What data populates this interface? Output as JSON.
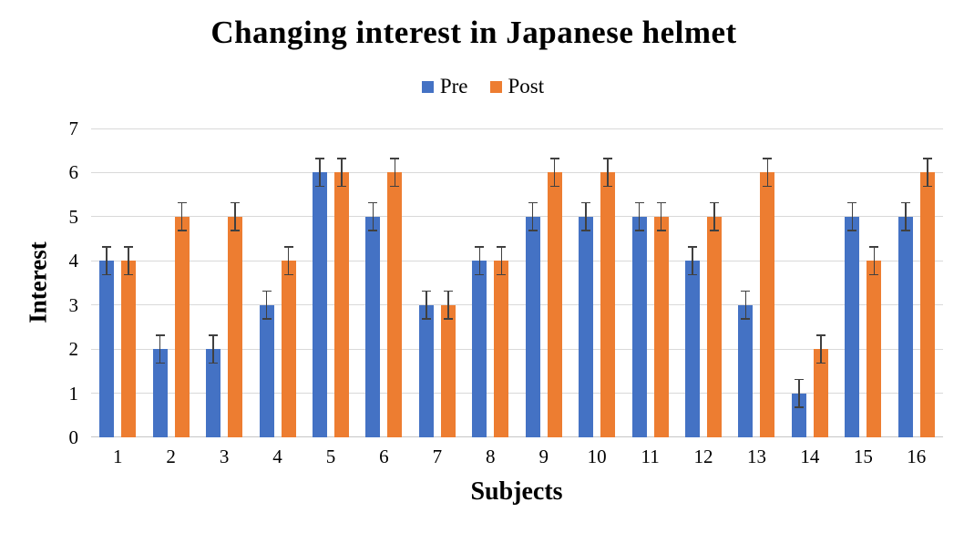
{
  "chart_data": {
    "type": "bar",
    "title": "Changing interest in Japanese helmet",
    "xlabel": "Subjects",
    "ylabel": "Interest",
    "categories": [
      "1",
      "2",
      "3",
      "4",
      "5",
      "6",
      "7",
      "8",
      "9",
      "10",
      "11",
      "12",
      "13",
      "14",
      "15",
      "16"
    ],
    "series": [
      {
        "name": "Pre",
        "color": "#4472C4",
        "values": [
          4,
          2,
          2,
          3,
          6,
          5,
          3,
          4,
          5,
          5,
          5,
          4,
          3,
          1,
          5,
          5
        ]
      },
      {
        "name": "Post",
        "color": "#ED7D31",
        "values": [
          4,
          5,
          5,
          4,
          6,
          6,
          3,
          4,
          6,
          6,
          5,
          5,
          6,
          2,
          4,
          6
        ]
      }
    ],
    "error_bar": 0.33,
    "ylim": [
      0,
      7
    ],
    "yticks": [
      0,
      1,
      2,
      3,
      4,
      5,
      6,
      7
    ],
    "grid": true,
    "legend_position": "top-center"
  },
  "colors": {
    "pre": "#4472C4",
    "post": "#ED7D31",
    "gridline": "#D9D9D9",
    "axis_line": "#C6C6C6",
    "error_bar": "#404040",
    "text": "#000000",
    "background": "#FFFFFF"
  }
}
